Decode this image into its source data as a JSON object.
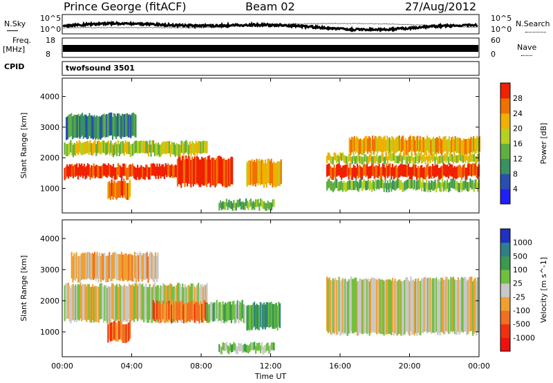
{
  "header": {
    "station": "Prince George (fitACF)",
    "beam": "Beam 02",
    "date": "27/Aug/2012"
  },
  "top_panels": {
    "nsky_label": "N.Sky",
    "nsky_ticks": [
      "10^5",
      "10^0"
    ],
    "nsearch_label": "N.Search",
    "nsearch_ticks": [
      "10^5",
      "10^0"
    ],
    "freq_label": "Freq.",
    "freq_unit": "[MHz]",
    "freq_ticks": [
      "18",
      "8"
    ],
    "nave_label": "Nave",
    "nave_ticks": [
      "60",
      "0"
    ],
    "cpid_label": "CPID",
    "cpid_value": "twofsound 3501"
  },
  "chart_data": [
    {
      "type": "heatmap",
      "name": "power-panel",
      "ylabel": "Slant Range [km]",
      "y_ticks": [
        "1000",
        "2000",
        "3000",
        "4000"
      ],
      "ylim": [
        200,
        4600
      ],
      "xlim": [
        0,
        24
      ],
      "colorbar_label": "Power [dB]",
      "colorbar_ticks": [
        "4",
        "8",
        "12",
        "16",
        "20",
        "24",
        "28"
      ],
      "colorbar_colors": [
        "#2020ff",
        "#2850b0",
        "#3a9060",
        "#60b040",
        "#b8d020",
        "#f0b000",
        "#f07000",
        "#f02000"
      ],
      "bands": [
        {
          "t0": 0.1,
          "t1": 8.3,
          "r0": 1350,
          "r1": 1750,
          "level": 7
        },
        {
          "t0": 0.1,
          "t1": 8.3,
          "r0": 2100,
          "r1": 2500,
          "level": 4
        },
        {
          "t0": 0.2,
          "t1": 4.2,
          "r0": 2650,
          "r1": 3400,
          "level": 2
        },
        {
          "t0": 2.6,
          "t1": 3.9,
          "r0": 700,
          "r1": 1250,
          "level": 6
        },
        {
          "t0": 6.6,
          "t1": 9.8,
          "r0": 1100,
          "r1": 2000,
          "level": 7
        },
        {
          "t0": 10.6,
          "t1": 12.6,
          "r0": 1100,
          "r1": 1900,
          "level": 5
        },
        {
          "t0": 9.0,
          "t1": 12.2,
          "r0": 350,
          "r1": 600,
          "level": 3
        },
        {
          "t0": 15.2,
          "t1": 24.0,
          "r0": 1350,
          "r1": 1750,
          "level": 7
        },
        {
          "t0": 15.2,
          "t1": 24.0,
          "r0": 950,
          "r1": 1250,
          "level": 3
        },
        {
          "t0": 15.2,
          "t1": 24.0,
          "r0": 1850,
          "r1": 2100,
          "level": 4
        },
        {
          "t0": 16.5,
          "t1": 24.0,
          "r0": 2150,
          "r1": 2650,
          "level": 5
        }
      ]
    },
    {
      "type": "heatmap",
      "name": "velocity-panel",
      "ylabel": "Slant Range [km]",
      "y_ticks": [
        "1000",
        "2000",
        "3000",
        "4000"
      ],
      "ylim": [
        200,
        4600
      ],
      "xlim": [
        0,
        24
      ],
      "xlabel": "Time UT",
      "x_ticks": [
        "00:00",
        "04:00",
        "08:00",
        "12:00",
        "16:00",
        "20:00",
        "00:00"
      ],
      "colorbar_label": "Velocity [m s^-1]",
      "colorbar_ticks": [
        "1000",
        "500",
        "100",
        "25",
        "-25",
        "-100",
        "-500",
        "-1000"
      ],
      "colorbar_colors": [
        "#2030c0",
        "#2e7f8a",
        "#3a9a50",
        "#70c040",
        "#c8c8c8",
        "#f0a030",
        "#f07020",
        "#f03010",
        "#f01010"
      ],
      "bands": [
        {
          "t0": 0.1,
          "t1": 8.3,
          "r0": 1350,
          "r1": 2500,
          "level": 4
        },
        {
          "t0": 2.6,
          "t1": 3.9,
          "r0": 700,
          "r1": 1300,
          "level": 6
        },
        {
          "t0": 5.2,
          "t1": 8.3,
          "r0": 1350,
          "r1": 1950,
          "level": 6
        },
        {
          "t0": 8.3,
          "t1": 10.5,
          "r0": 1350,
          "r1": 1950,
          "level": 3
        },
        {
          "t0": 10.6,
          "t1": 12.5,
          "r0": 1100,
          "r1": 1900,
          "level": 2
        },
        {
          "t0": 9.0,
          "t1": 12.2,
          "r0": 350,
          "r1": 600,
          "level": 3
        },
        {
          "t0": 15.2,
          "t1": 24.0,
          "r0": 950,
          "r1": 2700,
          "level": 4
        },
        {
          "t0": 0.5,
          "t1": 5.5,
          "r0": 2650,
          "r1": 3500,
          "level": 5
        }
      ]
    }
  ]
}
